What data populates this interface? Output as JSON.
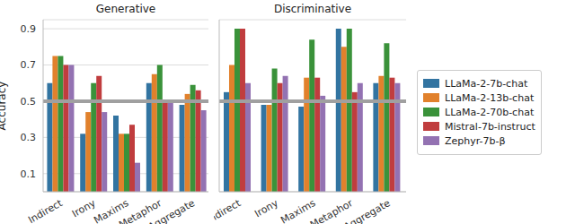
{
  "chart_data": [
    {
      "type": "bar",
      "title": "Generative",
      "ylabel": "Accuracy",
      "categories": [
        "Indirect",
        "Irony",
        "Maxims",
        "Metaphor",
        "Aggregate"
      ],
      "series": [
        {
          "name": "LLaMa-2-7b-chat",
          "color": "#3274a1",
          "values": [
            0.6,
            0.32,
            0.42,
            0.6,
            0.48
          ]
        },
        {
          "name": "LLaMa-2-13b-chat",
          "color": "#e1812c",
          "values": [
            0.75,
            0.44,
            0.32,
            0.65,
            0.54
          ]
        },
        {
          "name": "LLaMa-2-70b-chat",
          "color": "#3a923a",
          "values": [
            0.75,
            0.6,
            0.32,
            0.7,
            0.59
          ]
        },
        {
          "name": "Mistral-7b-instruct",
          "color": "#c03d3e",
          "values": [
            0.7,
            0.64,
            0.37,
            0.5,
            0.56
          ]
        },
        {
          "name": "Zephyr-7b-β",
          "color": "#9372b2",
          "values": [
            0.7,
            0.44,
            0.16,
            0.5,
            0.45
          ]
        }
      ],
      "baseline": 0.5,
      "ylim": [
        0,
        0.95
      ],
      "yticks": [
        0.1,
        0.3,
        0.5,
        0.7,
        0.9
      ],
      "grid": true
    },
    {
      "type": "bar",
      "title": "Discriminative",
      "categories": [
        "Indirect",
        "Irony",
        "Maxims",
        "Metaphor",
        "Aggregate"
      ],
      "series": [
        {
          "name": "LLaMa-2-7b-chat",
          "color": "#3274a1",
          "values": [
            0.55,
            0.48,
            0.47,
            0.9,
            0.6
          ]
        },
        {
          "name": "LLaMa-2-13b-chat",
          "color": "#e1812c",
          "values": [
            0.7,
            0.48,
            0.63,
            0.8,
            0.64
          ]
        },
        {
          "name": "LLaMa-2-70b-chat",
          "color": "#3a923a",
          "values": [
            0.9,
            0.68,
            0.84,
            0.9,
            0.82
          ]
        },
        {
          "name": "Mistral-7b-instruct",
          "color": "#c03d3e",
          "values": [
            0.9,
            0.6,
            0.63,
            0.55,
            0.63
          ]
        },
        {
          "name": "Zephyr-7b-β",
          "color": "#9372b2",
          "values": [
            0.6,
            0.64,
            0.53,
            0.6,
            0.6
          ]
        }
      ],
      "baseline": 0.5,
      "ylim": [
        0,
        0.95
      ],
      "yticks": [
        0.1,
        0.3,
        0.5,
        0.7,
        0.9
      ],
      "grid": true,
      "tick_labels": "x",
      "legend": "right"
    }
  ]
}
